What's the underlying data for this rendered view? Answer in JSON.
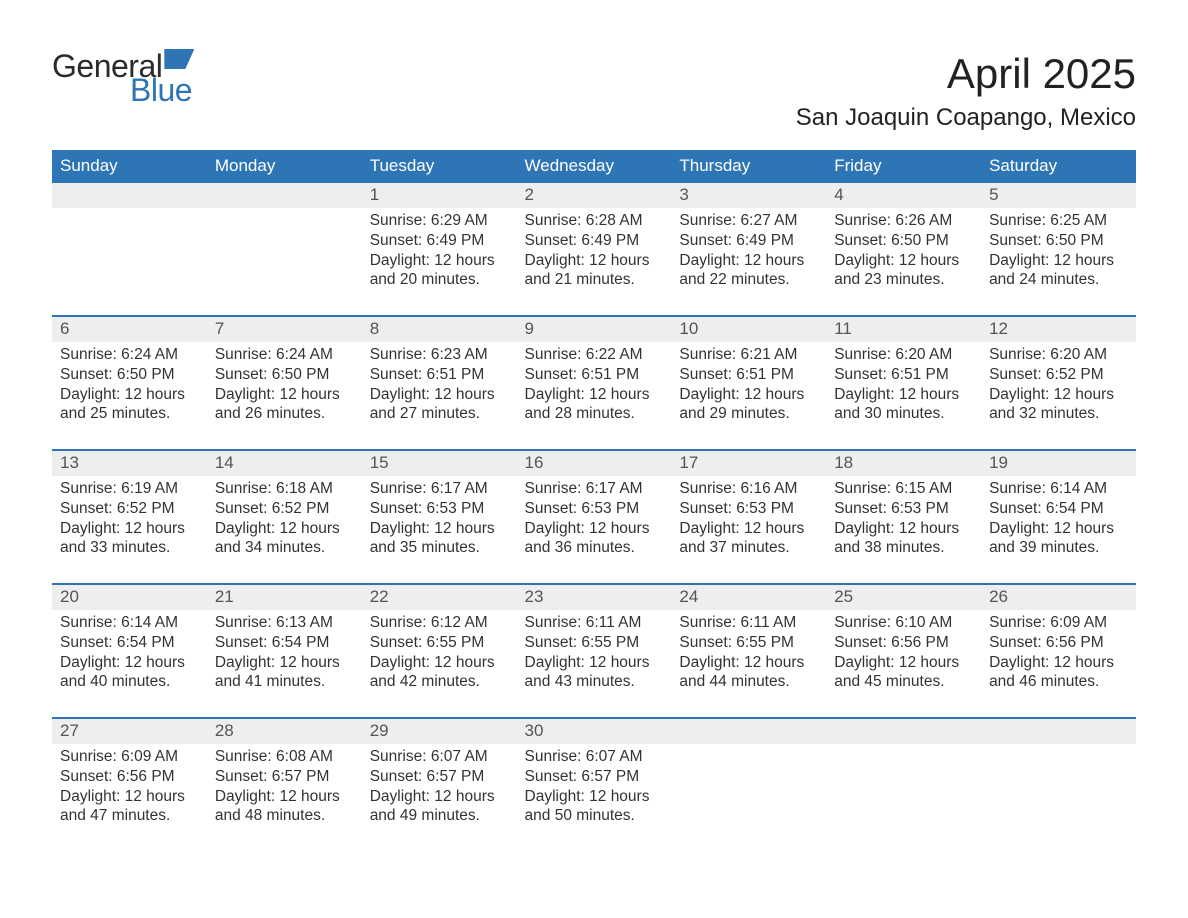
{
  "brand": {
    "word1": "General",
    "word2": "Blue",
    "accent_color": "#2e75b6"
  },
  "title": "April 2025",
  "location": "San Joaquin Coapango, Mexico",
  "colors": {
    "header_bg": "#2e75b6",
    "header_text": "#ffffff",
    "daynum_bg": "#eeeeee",
    "text": "#333333",
    "page_bg": "#ffffff"
  },
  "typography": {
    "title_fontsize_pt": 32,
    "location_fontsize_pt": 18,
    "header_fontsize_pt": 13,
    "body_fontsize_pt": 12,
    "font_family": "Arial"
  },
  "layout": {
    "columns": 7,
    "rows": 5,
    "first_weekday": "Sunday"
  },
  "weekdays": [
    "Sunday",
    "Monday",
    "Tuesday",
    "Wednesday",
    "Thursday",
    "Friday",
    "Saturday"
  ],
  "days": [
    {
      "n": 1,
      "sunrise": "6:29 AM",
      "sunset": "6:49 PM",
      "daylight": "12 hours and 20 minutes."
    },
    {
      "n": 2,
      "sunrise": "6:28 AM",
      "sunset": "6:49 PM",
      "daylight": "12 hours and 21 minutes."
    },
    {
      "n": 3,
      "sunrise": "6:27 AM",
      "sunset": "6:49 PM",
      "daylight": "12 hours and 22 minutes."
    },
    {
      "n": 4,
      "sunrise": "6:26 AM",
      "sunset": "6:50 PM",
      "daylight": "12 hours and 23 minutes."
    },
    {
      "n": 5,
      "sunrise": "6:25 AM",
      "sunset": "6:50 PM",
      "daylight": "12 hours and 24 minutes."
    },
    {
      "n": 6,
      "sunrise": "6:24 AM",
      "sunset": "6:50 PM",
      "daylight": "12 hours and 25 minutes."
    },
    {
      "n": 7,
      "sunrise": "6:24 AM",
      "sunset": "6:50 PM",
      "daylight": "12 hours and 26 minutes."
    },
    {
      "n": 8,
      "sunrise": "6:23 AM",
      "sunset": "6:51 PM",
      "daylight": "12 hours and 27 minutes."
    },
    {
      "n": 9,
      "sunrise": "6:22 AM",
      "sunset": "6:51 PM",
      "daylight": "12 hours and 28 minutes."
    },
    {
      "n": 10,
      "sunrise": "6:21 AM",
      "sunset": "6:51 PM",
      "daylight": "12 hours and 29 minutes."
    },
    {
      "n": 11,
      "sunrise": "6:20 AM",
      "sunset": "6:51 PM",
      "daylight": "12 hours and 30 minutes."
    },
    {
      "n": 12,
      "sunrise": "6:20 AM",
      "sunset": "6:52 PM",
      "daylight": "12 hours and 32 minutes."
    },
    {
      "n": 13,
      "sunrise": "6:19 AM",
      "sunset": "6:52 PM",
      "daylight": "12 hours and 33 minutes."
    },
    {
      "n": 14,
      "sunrise": "6:18 AM",
      "sunset": "6:52 PM",
      "daylight": "12 hours and 34 minutes."
    },
    {
      "n": 15,
      "sunrise": "6:17 AM",
      "sunset": "6:53 PM",
      "daylight": "12 hours and 35 minutes."
    },
    {
      "n": 16,
      "sunrise": "6:17 AM",
      "sunset": "6:53 PM",
      "daylight": "12 hours and 36 minutes."
    },
    {
      "n": 17,
      "sunrise": "6:16 AM",
      "sunset": "6:53 PM",
      "daylight": "12 hours and 37 minutes."
    },
    {
      "n": 18,
      "sunrise": "6:15 AM",
      "sunset": "6:53 PM",
      "daylight": "12 hours and 38 minutes."
    },
    {
      "n": 19,
      "sunrise": "6:14 AM",
      "sunset": "6:54 PM",
      "daylight": "12 hours and 39 minutes."
    },
    {
      "n": 20,
      "sunrise": "6:14 AM",
      "sunset": "6:54 PM",
      "daylight": "12 hours and 40 minutes."
    },
    {
      "n": 21,
      "sunrise": "6:13 AM",
      "sunset": "6:54 PM",
      "daylight": "12 hours and 41 minutes."
    },
    {
      "n": 22,
      "sunrise": "6:12 AM",
      "sunset": "6:55 PM",
      "daylight": "12 hours and 42 minutes."
    },
    {
      "n": 23,
      "sunrise": "6:11 AM",
      "sunset": "6:55 PM",
      "daylight": "12 hours and 43 minutes."
    },
    {
      "n": 24,
      "sunrise": "6:11 AM",
      "sunset": "6:55 PM",
      "daylight": "12 hours and 44 minutes."
    },
    {
      "n": 25,
      "sunrise": "6:10 AM",
      "sunset": "6:56 PM",
      "daylight": "12 hours and 45 minutes."
    },
    {
      "n": 26,
      "sunrise": "6:09 AM",
      "sunset": "6:56 PM",
      "daylight": "12 hours and 46 minutes."
    },
    {
      "n": 27,
      "sunrise": "6:09 AM",
      "sunset": "6:56 PM",
      "daylight": "12 hours and 47 minutes."
    },
    {
      "n": 28,
      "sunrise": "6:08 AM",
      "sunset": "6:57 PM",
      "daylight": "12 hours and 48 minutes."
    },
    {
      "n": 29,
      "sunrise": "6:07 AM",
      "sunset": "6:57 PM",
      "daylight": "12 hours and 49 minutes."
    },
    {
      "n": 30,
      "sunrise": "6:07 AM",
      "sunset": "6:57 PM",
      "daylight": "12 hours and 50 minutes."
    }
  ],
  "labels": {
    "sunrise": "Sunrise:",
    "sunset": "Sunset:",
    "daylight": "Daylight:"
  },
  "grid": [
    [
      null,
      null,
      1,
      2,
      3,
      4,
      5
    ],
    [
      6,
      7,
      8,
      9,
      10,
      11,
      12
    ],
    [
      13,
      14,
      15,
      16,
      17,
      18,
      19
    ],
    [
      20,
      21,
      22,
      23,
      24,
      25,
      26
    ],
    [
      27,
      28,
      29,
      30,
      null,
      null,
      null
    ]
  ]
}
